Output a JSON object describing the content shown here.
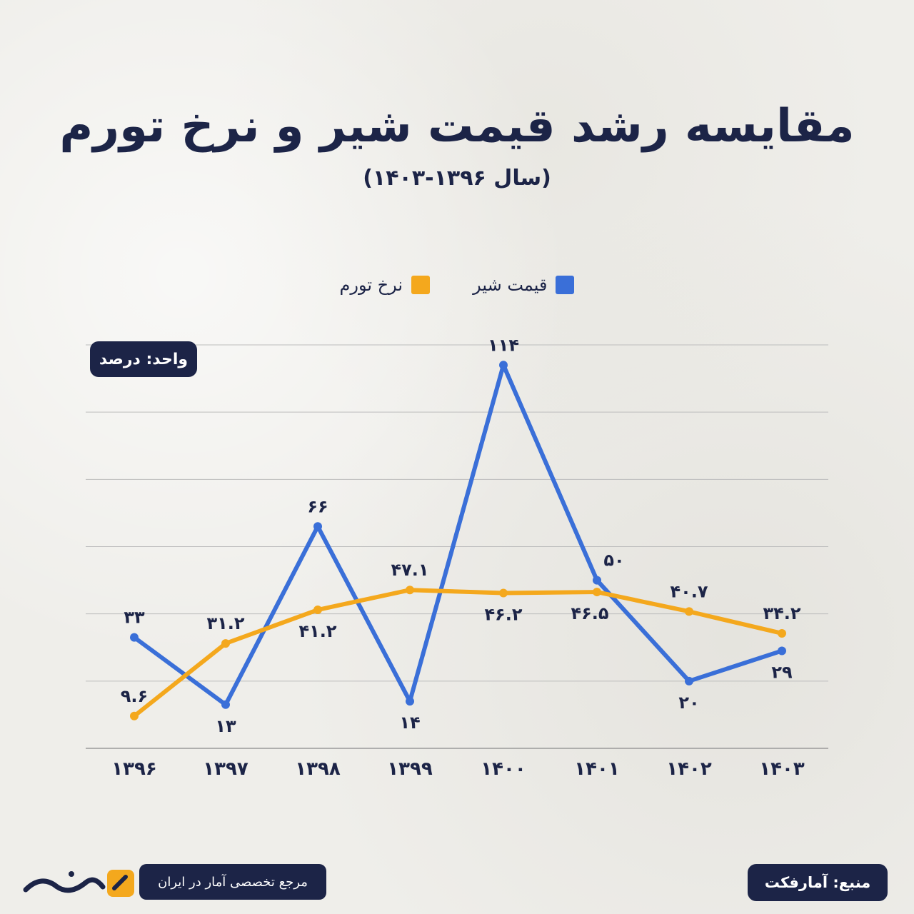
{
  "title": "مقایسه رشد قیمت شیر و نرخ تورم",
  "subtitle": "(سال ۱۳۹۶-۱۴۰۳)",
  "unit_label": "واحد: درصد",
  "footer": {
    "tagline": "مرجع تخصصی آمار در ایران",
    "source": "منبع: آمارفکت"
  },
  "colors": {
    "milk": "#3a6fd8",
    "inflation": "#f4a81d",
    "navy": "#1c2447",
    "grid": "#bdbdbd"
  },
  "chart_data": {
    "type": "line",
    "categories": [
      "۱۳۹۶",
      "۱۳۹۷",
      "۱۳۹۸",
      "۱۳۹۹",
      "۱۴۰۰",
      "۱۴۰۱",
      "۱۴۰۲",
      "۱۴۰۳"
    ],
    "series": [
      {
        "name": "قیمت شیر",
        "values": [
          33,
          13,
          66,
          14,
          114,
          50,
          20,
          29
        ],
        "labels": [
          "۳۳",
          "۱۳",
          "۶۶",
          "۱۴",
          "۱۱۴",
          "۵۰",
          "۲۰",
          "۲۹"
        ]
      },
      {
        "name": "نرخ تورم",
        "values": [
          9.6,
          31.2,
          41.2,
          47.1,
          46.2,
          46.5,
          40.7,
          34.2
        ],
        "labels": [
          "۹.۶",
          "۳۱.۲",
          "۴۱.۲",
          "۴۷.۱",
          "۴۶.۲",
          "۴۶.۵",
          "۴۰.۷",
          "۳۴.۲"
        ]
      }
    ],
    "ylim": [
      0,
      120
    ],
    "grid": true,
    "legend": "top-center"
  }
}
